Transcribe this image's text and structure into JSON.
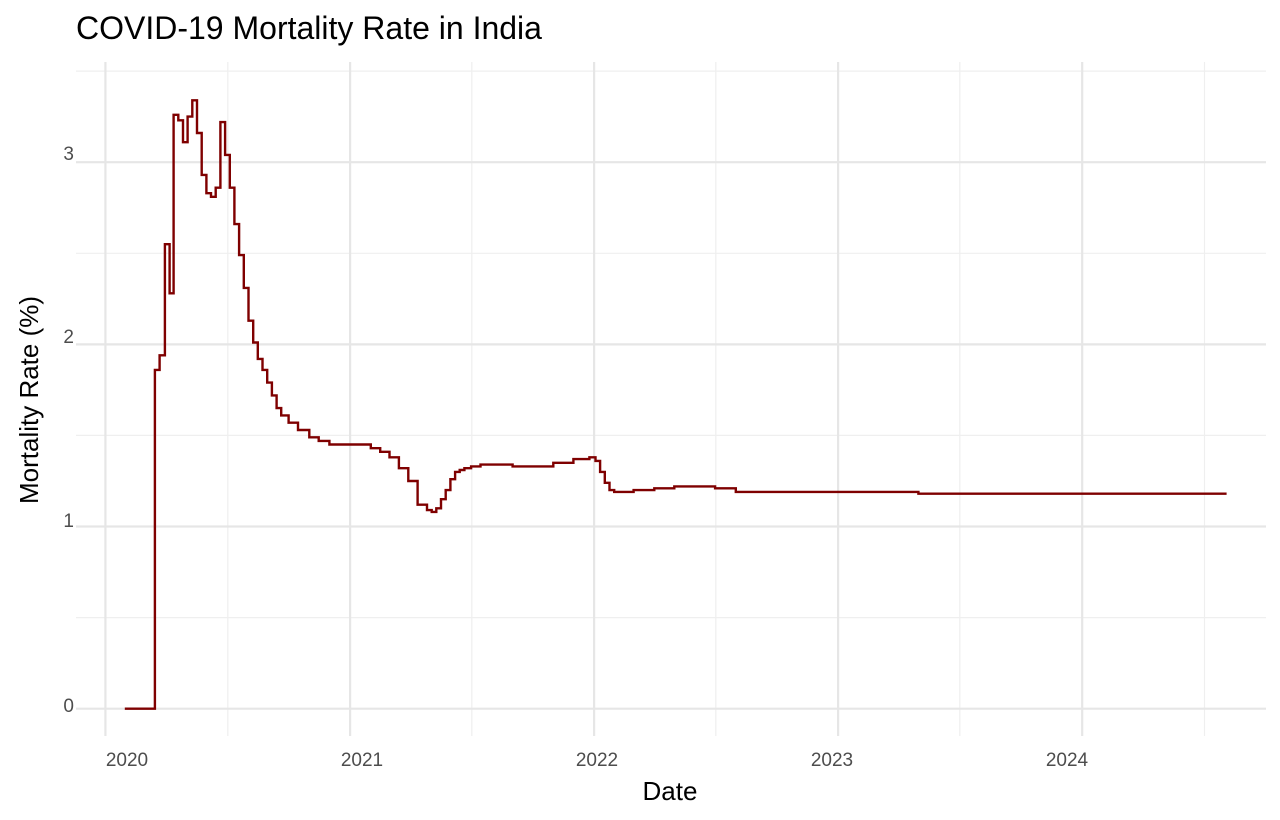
{
  "chart_data": {
    "type": "line",
    "title": "COVID-19 Mortality Rate in India",
    "xlabel": "Date",
    "ylabel": "Mortality Rate (%)",
    "x_ticks": [
      "2020",
      "2021",
      "2022",
      "2023",
      "2024"
    ],
    "y_ticks": [
      0,
      1,
      2,
      3
    ],
    "xlim": [
      "2019-11-18",
      "2024-10-02"
    ],
    "ylim": [
      -0.15,
      3.55
    ],
    "grid": true,
    "legend": "none",
    "line_color": "#7f0000",
    "series": [
      {
        "x": [
          "2020-01-30",
          "2020-03-01",
          "2020-03-15",
          "2020-03-22",
          "2020-03-30",
          "2020-04-06",
          "2020-04-12",
          "2020-04-19",
          "2020-04-26",
          "2020-05-03",
          "2020-05-10",
          "2020-05-17",
          "2020-05-24",
          "2020-05-31",
          "2020-06-07",
          "2020-06-14",
          "2020-06-21",
          "2020-06-28",
          "2020-07-05",
          "2020-07-12",
          "2020-07-19",
          "2020-07-26",
          "2020-08-02",
          "2020-08-09",
          "2020-08-16",
          "2020-08-23",
          "2020-08-30",
          "2020-09-06",
          "2020-09-13",
          "2020-09-20",
          "2020-10-01",
          "2020-10-15",
          "2020-11-01",
          "2020-11-15",
          "2020-12-01",
          "2021-01-01",
          "2021-02-01",
          "2021-02-15",
          "2021-03-01",
          "2021-03-15",
          "2021-03-29",
          "2021-04-12",
          "2021-04-26",
          "2021-05-03",
          "2021-05-10",
          "2021-05-17",
          "2021-05-24",
          "2021-05-31",
          "2021-06-07",
          "2021-06-14",
          "2021-06-21",
          "2021-07-01",
          "2021-07-15",
          "2021-08-01",
          "2021-09-01",
          "2021-10-01",
          "2021-11-01",
          "2021-12-01",
          "2021-12-25",
          "2022-01-03",
          "2022-01-10",
          "2022-01-17",
          "2022-01-24",
          "2022-01-31",
          "2022-02-15",
          "2022-03-01",
          "2022-04-01",
          "2022-05-01",
          "2022-06-01",
          "2022-07-01",
          "2022-08-01",
          "2022-09-01",
          "2022-11-01",
          "2023-01-01",
          "2023-04-01",
          "2023-05-01",
          "2023-07-01",
          "2023-10-15",
          "2024-01-01",
          "2024-04-01",
          "2024-08-04"
        ],
        "y": [
          0,
          0,
          1.86,
          1.94,
          2.55,
          2.28,
          3.26,
          3.23,
          3.11,
          3.25,
          3.34,
          3.16,
          2.93,
          2.83,
          2.81,
          2.86,
          3.22,
          3.04,
          2.86,
          2.66,
          2.49,
          2.31,
          2.13,
          2.01,
          1.92,
          1.86,
          1.79,
          1.72,
          1.65,
          1.61,
          1.57,
          1.53,
          1.49,
          1.47,
          1.45,
          1.45,
          1.43,
          1.41,
          1.38,
          1.32,
          1.25,
          1.12,
          1.09,
          1.08,
          1.1,
          1.15,
          1.2,
          1.26,
          1.3,
          1.31,
          1.32,
          1.33,
          1.34,
          1.34,
          1.33,
          1.33,
          1.35,
          1.37,
          1.38,
          1.36,
          1.3,
          1.24,
          1.2,
          1.19,
          1.19,
          1.2,
          1.21,
          1.22,
          1.22,
          1.21,
          1.19,
          1.19,
          1.19,
          1.19,
          1.19,
          1.18,
          1.18,
          1.18,
          1.18,
          1.18,
          1.18
        ]
      }
    ]
  }
}
